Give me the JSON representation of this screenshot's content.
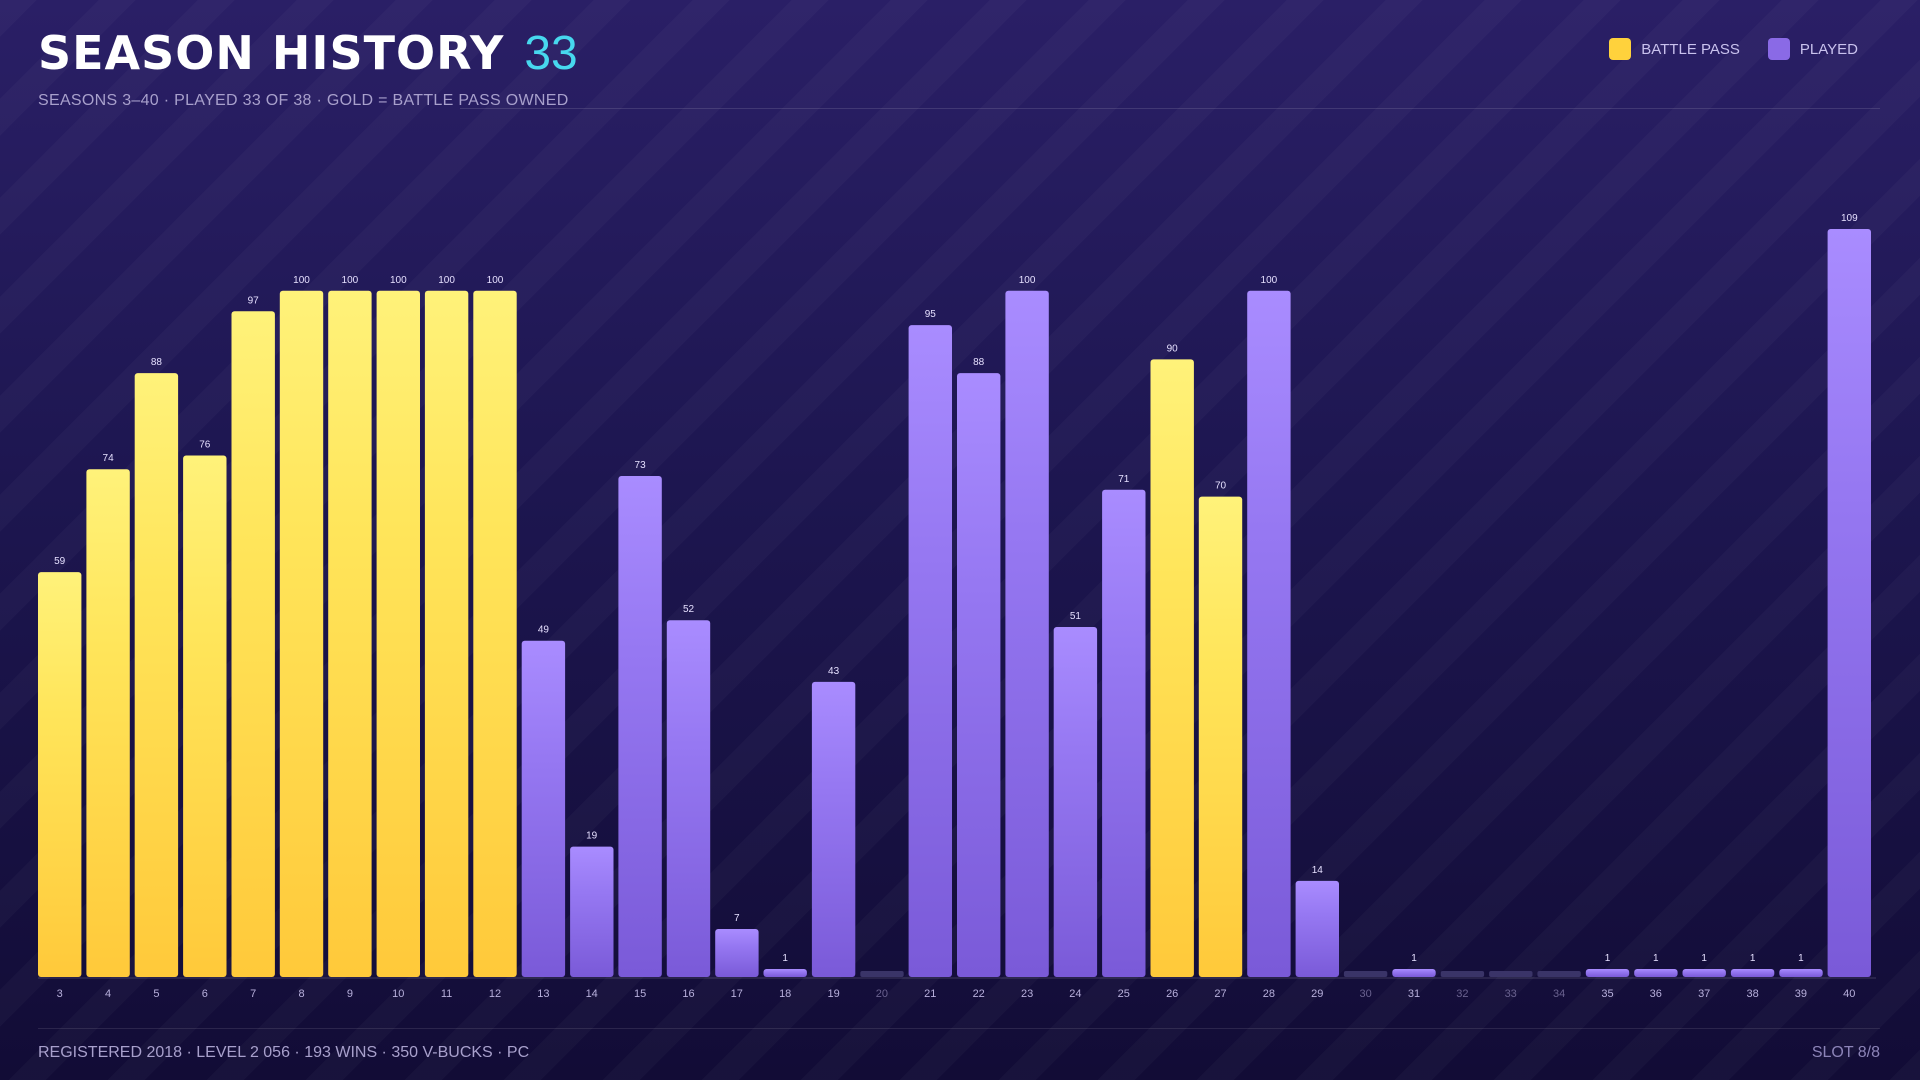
{
  "header": {
    "title": "SEASON HISTORY",
    "count": "33",
    "subtitle": "SEASONS 3–40  ·  PLAYED 33 OF 38  ·  GOLD = BATTLE PASS OWNED"
  },
  "legend": {
    "items": [
      {
        "label": "BATTLE PASS",
        "color": "#ffd23c"
      },
      {
        "label": "PLAYED",
        "color": "#8a6ae6"
      }
    ]
  },
  "footer": {
    "left": "REGISTERED 2018  ·  LEVEL 2 056  ·  193 WINS  ·  350 V-BUCKS  ·  PC",
    "right": "SLOT 8/8"
  },
  "chart_data": {
    "type": "bar",
    "title": "SEASON HISTORY",
    "categories": [
      "3",
      "4",
      "5",
      "6",
      "7",
      "8",
      "9",
      "10",
      "11",
      "12",
      "13",
      "14",
      "15",
      "16",
      "17",
      "18",
      "19",
      "20",
      "21",
      "22",
      "23",
      "24",
      "25",
      "26",
      "27",
      "28",
      "29",
      "30",
      "31",
      "32",
      "33",
      "34",
      "35",
      "36",
      "37",
      "38",
      "39",
      "40"
    ],
    "values": [
      59,
      74,
      88,
      76,
      97,
      100,
      100,
      100,
      100,
      100,
      49,
      19,
      73,
      52,
      7,
      1,
      43,
      0,
      95,
      88,
      100,
      51,
      71,
      90,
      70,
      100,
      14,
      0,
      1,
      0,
      0,
      0,
      1,
      1,
      1,
      1,
      1,
      109
    ],
    "battle_pass": [
      true,
      true,
      true,
      true,
      true,
      true,
      true,
      true,
      true,
      true,
      false,
      false,
      false,
      false,
      false,
      false,
      false,
      false,
      false,
      false,
      false,
      false,
      false,
      true,
      true,
      false,
      false,
      false,
      false,
      false,
      false,
      false,
      false,
      false,
      false,
      false,
      false,
      false
    ],
    "ylim": [
      0,
      109
    ],
    "colors": {
      "battle_pass": "#ffd23c",
      "played": "#8a6ae6",
      "not_played": "#3a3468"
    },
    "grid": false,
    "legend_position": "top-right"
  }
}
